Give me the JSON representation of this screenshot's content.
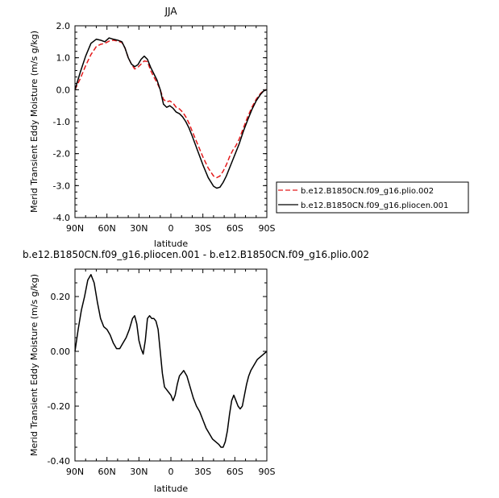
{
  "chart_data": [
    {
      "type": "line",
      "title": "JJA",
      "xlabel": "latitude",
      "ylabel": "Merid Transient Eddy Moisture  (m/s g/kg)",
      "x_tick_labels": [
        "90N",
        "60N",
        "30N",
        "0",
        "30S",
        "60S",
        "90S"
      ],
      "y_tick_labels": [
        "2.0",
        "1.0",
        "0.0",
        "-1.0",
        "-2.0",
        "-3.0",
        "-4.0"
      ],
      "xlim": [
        90,
        -90
      ],
      "ylim": [
        -4.0,
        2.0
      ],
      "grid": false,
      "legend_position": "right",
      "series": [
        {
          "name": "b.e12.B1850CN.f09_g16.plio.002",
          "color": "#e41a1c",
          "dash": "dashed",
          "x": [
            90,
            85,
            80,
            75,
            70,
            66,
            62,
            58,
            54,
            50,
            46,
            43,
            40,
            37,
            34,
            31,
            28,
            25,
            22,
            19,
            16,
            13,
            10,
            7,
            4,
            1,
            -2,
            -5,
            -8,
            -11,
            -14,
            -17,
            -20,
            -25,
            -30,
            -35,
            -40,
            -43,
            -46,
            -49,
            -52,
            -55,
            -58,
            -61,
            -64,
            -68,
            -72,
            -76,
            -80,
            -84,
            -87,
            -90
          ],
          "y": [
            0.0,
            0.35,
            0.75,
            1.1,
            1.35,
            1.42,
            1.45,
            1.52,
            1.55,
            1.52,
            1.48,
            1.3,
            1.0,
            0.8,
            0.65,
            0.7,
            0.8,
            0.9,
            0.88,
            0.6,
            0.4,
            0.22,
            0.0,
            -0.3,
            -0.38,
            -0.35,
            -0.42,
            -0.55,
            -0.6,
            -0.7,
            -0.85,
            -1.05,
            -1.3,
            -1.7,
            -2.1,
            -2.45,
            -2.7,
            -2.75,
            -2.7,
            -2.55,
            -2.35,
            -2.1,
            -1.9,
            -1.75,
            -1.55,
            -1.2,
            -0.85,
            -0.55,
            -0.3,
            -0.12,
            -0.03,
            0.0
          ]
        },
        {
          "name": "b.e12.B1850CN.f09_g16.pliocen.001",
          "color": "#000000",
          "dash": "solid",
          "x": [
            90,
            85,
            80,
            75,
            70,
            66,
            62,
            58,
            54,
            50,
            46,
            43,
            40,
            37,
            34,
            31,
            28,
            25,
            22,
            19,
            16,
            13,
            10,
            7,
            4,
            1,
            -2,
            -5,
            -8,
            -11,
            -14,
            -17,
            -20,
            -25,
            -30,
            -35,
            -40,
            -43,
            -46,
            -49,
            -52,
            -55,
            -58,
            -61,
            -64,
            -68,
            -72,
            -76,
            -80,
            -84,
            -87,
            -90
          ],
          "y": [
            0.0,
            0.55,
            1.05,
            1.45,
            1.58,
            1.55,
            1.5,
            1.62,
            1.58,
            1.55,
            1.5,
            1.3,
            1.0,
            0.8,
            0.72,
            0.78,
            0.95,
            1.05,
            0.95,
            0.7,
            0.5,
            0.3,
            0.0,
            -0.45,
            -0.55,
            -0.5,
            -0.58,
            -0.7,
            -0.75,
            -0.85,
            -1.0,
            -1.2,
            -1.45,
            -1.9,
            -2.35,
            -2.75,
            -3.02,
            -3.08,
            -3.05,
            -2.9,
            -2.7,
            -2.45,
            -2.2,
            -1.95,
            -1.7,
            -1.3,
            -0.95,
            -0.62,
            -0.35,
            -0.15,
            -0.04,
            0.0
          ]
        }
      ]
    },
    {
      "type": "line",
      "title": "b.e12.B1850CN.f09_g16.pliocen.001 - b.e12.B1850CN.f09_g16.plio.002",
      "xlabel": "latitude",
      "ylabel": "Merid Transient Eddy Moisture  (m/s g/kg)",
      "x_tick_labels": [
        "90N",
        "60N",
        "30N",
        "0",
        "30S",
        "60S",
        "90S"
      ],
      "y_tick_labels": [
        "0.20",
        "0.00",
        "-0.20",
        "-0.40"
      ],
      "xlim": [
        90,
        -90
      ],
      "ylim": [
        -0.4,
        0.3
      ],
      "grid": false,
      "series": [
        {
          "color": "#000000",
          "dash": "solid",
          "x": [
            90,
            87,
            84,
            81,
            78,
            75,
            72,
            69,
            66,
            63,
            60,
            57,
            54,
            51,
            48,
            45,
            42,
            39,
            36,
            34,
            32,
            30,
            28,
            26,
            24,
            22,
            20,
            18,
            16,
            14,
            12,
            10,
            8,
            6,
            4,
            2,
            0,
            -2,
            -4,
            -6,
            -8,
            -10,
            -12,
            -15,
            -18,
            -21,
            -24,
            -27,
            -30,
            -33,
            -36,
            -39,
            -42,
            -45,
            -47,
            -49,
            -51,
            -53,
            -55,
            -57,
            -59,
            -61,
            -63,
            -65,
            -67,
            -69,
            -71,
            -73,
            -75,
            -78,
            -81,
            -84,
            -87,
            -90
          ],
          "y": [
            0.0,
            0.08,
            0.15,
            0.2,
            0.26,
            0.28,
            0.25,
            0.18,
            0.12,
            0.09,
            0.08,
            0.06,
            0.03,
            0.01,
            0.01,
            0.03,
            0.05,
            0.08,
            0.12,
            0.13,
            0.1,
            0.04,
            0.01,
            -0.01,
            0.04,
            0.12,
            0.13,
            0.12,
            0.12,
            0.11,
            0.08,
            0.0,
            -0.08,
            -0.13,
            -0.14,
            -0.15,
            -0.16,
            -0.18,
            -0.16,
            -0.12,
            -0.09,
            -0.08,
            -0.07,
            -0.09,
            -0.13,
            -0.17,
            -0.2,
            -0.22,
            -0.25,
            -0.28,
            -0.3,
            -0.32,
            -0.33,
            -0.34,
            -0.35,
            -0.35,
            -0.33,
            -0.29,
            -0.23,
            -0.18,
            -0.16,
            -0.18,
            -0.2,
            -0.21,
            -0.2,
            -0.16,
            -0.12,
            -0.09,
            -0.07,
            -0.05,
            -0.03,
            -0.02,
            -0.01,
            0.0
          ]
        }
      ]
    }
  ]
}
